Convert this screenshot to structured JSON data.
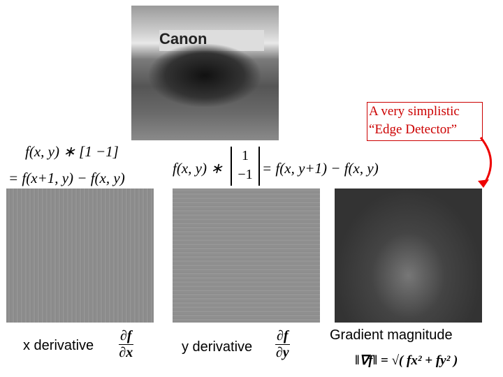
{
  "images": {
    "original": "race car photo",
    "x_derivative": "x derivative image",
    "y_derivative": "y derivative image",
    "gradient": "gradient magnitude image"
  },
  "image_text": {
    "banner": "Canon"
  },
  "callout": {
    "line1": "A very simplistic",
    "line2": "“Edge Detector”",
    "color": "#cc0000"
  },
  "formulas": {
    "x_conv": "f(x, y) ∗ [1  −1]",
    "x_result": "= f(x+1, y) − f(x, y)",
    "y_conv_left": "f(x, y) ∗",
    "y_kernel_top": "1",
    "y_kernel_bottom": "−1",
    "y_result": "= f(x, y+1) − f(x, y)",
    "grad_mag": "‖∇f‖ = √( fx² + fy² )"
  },
  "labels": {
    "x": "x derivative",
    "y": "y derivative",
    "gradient": "Gradient magnitude"
  },
  "fractions": {
    "x_num": "∂f",
    "x_den": "∂x",
    "y_num": "∂f",
    "y_den": "∂y"
  }
}
